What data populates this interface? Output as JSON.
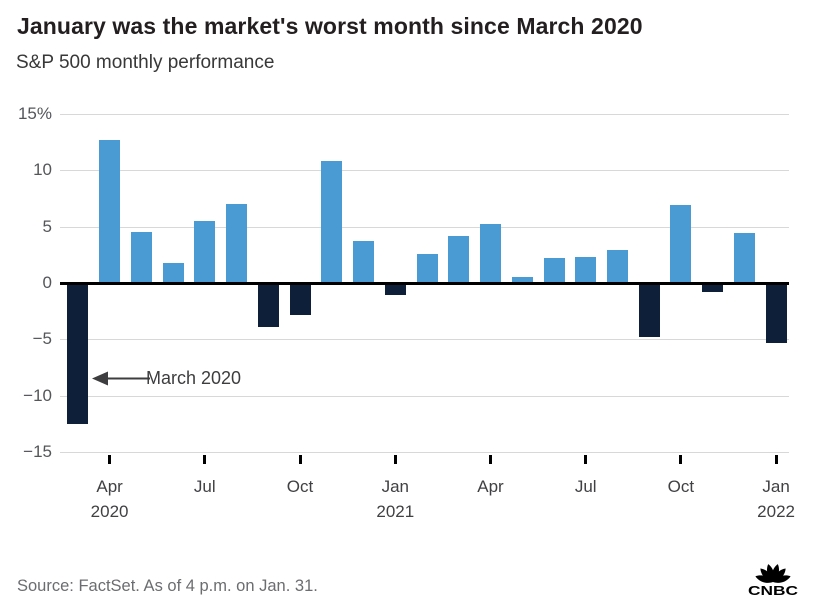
{
  "header": {
    "title": "January was the market's worst month since March 2020",
    "subtitle": "S&P 500 monthly performance"
  },
  "footer": {
    "source": "Source: FactSet. As of 4 p.m. on Jan. 31.",
    "logo_text": "CNBC"
  },
  "chart_data": {
    "type": "bar",
    "title": "January was the market's worst month since March 2020",
    "subtitle": "S&P 500 monthly performance",
    "ylabel": "%",
    "ylim": [
      -15,
      15
    ],
    "grid": true,
    "legend": false,
    "yticks": [
      15,
      10,
      5,
      0,
      -5,
      -10,
      -15
    ],
    "ytick_labels": [
      "15%",
      "10",
      "5",
      "0",
      "−5",
      "−10",
      "−15"
    ],
    "categories": [
      "Mar 2020",
      "Apr 2020",
      "May 2020",
      "Jun 2020",
      "Jul 2020",
      "Aug 2020",
      "Sep 2020",
      "Oct 2020",
      "Nov 2020",
      "Dec 2020",
      "Jan 2021",
      "Feb 2021",
      "Mar 2021",
      "Apr 2021",
      "May 2021",
      "Jun 2021",
      "Jul 2021",
      "Aug 2021",
      "Sep 2021",
      "Oct 2021",
      "Nov 2021",
      "Dec 2021",
      "Jan 2022"
    ],
    "values": [
      -12.5,
      12.7,
      4.5,
      1.8,
      5.5,
      7.0,
      -3.9,
      -2.8,
      10.8,
      3.7,
      -1.1,
      2.6,
      4.2,
      5.2,
      0.5,
      2.2,
      2.3,
      2.9,
      -4.8,
      6.9,
      -0.8,
      4.4,
      -5.3
    ],
    "xticks": [
      {
        "index": 1,
        "month": "Apr",
        "year": "2020"
      },
      {
        "index": 4,
        "month": "Jul",
        "year": ""
      },
      {
        "index": 7,
        "month": "Oct",
        "year": ""
      },
      {
        "index": 10,
        "month": "Jan",
        "year": "2021"
      },
      {
        "index": 13,
        "month": "Apr",
        "year": ""
      },
      {
        "index": 16,
        "month": "Jul",
        "year": ""
      },
      {
        "index": 19,
        "month": "Oct",
        "year": ""
      },
      {
        "index": 22,
        "month": "Jan",
        "year": "2022"
      }
    ],
    "annotation": {
      "text": "March 2020",
      "points_to": "Mar 2020",
      "arrow_direction": "left",
      "y_value": -8.5
    },
    "positive_color": "#4a9ad4",
    "negative_color": "#0e2039",
    "gridline_color": "#d8d8d8",
    "axis_color": "#000000"
  }
}
